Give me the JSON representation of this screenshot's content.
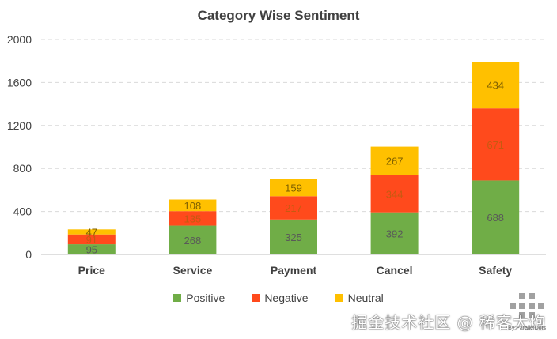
{
  "chart_data": {
    "type": "bar",
    "stacked": true,
    "title": "Category Wise Sentiment",
    "xlabel": "",
    "ylabel": "",
    "ylim": [
      0,
      2000
    ],
    "yticks": [
      0,
      400,
      800,
      1200,
      1600,
      2000
    ],
    "grid": true,
    "legend_position": "bottom",
    "categories": [
      "Price",
      "Service",
      "Payment",
      "Cancel",
      "Safety"
    ],
    "series": [
      {
        "name": "Positive",
        "color": "#70ad47",
        "values": [
          95,
          268,
          325,
          392,
          688
        ]
      },
      {
        "name": "Negative",
        "color": "#ff4a1c",
        "values": [
          91,
          135,
          217,
          344,
          671
        ]
      },
      {
        "name": "Neutral",
        "color": "#ffc000",
        "values": [
          47,
          108,
          159,
          267,
          434
        ]
      }
    ]
  },
  "watermark": {
    "text": "掘金技术社区 @ 稀客大炮",
    "sub": "By ParallelDots"
  }
}
